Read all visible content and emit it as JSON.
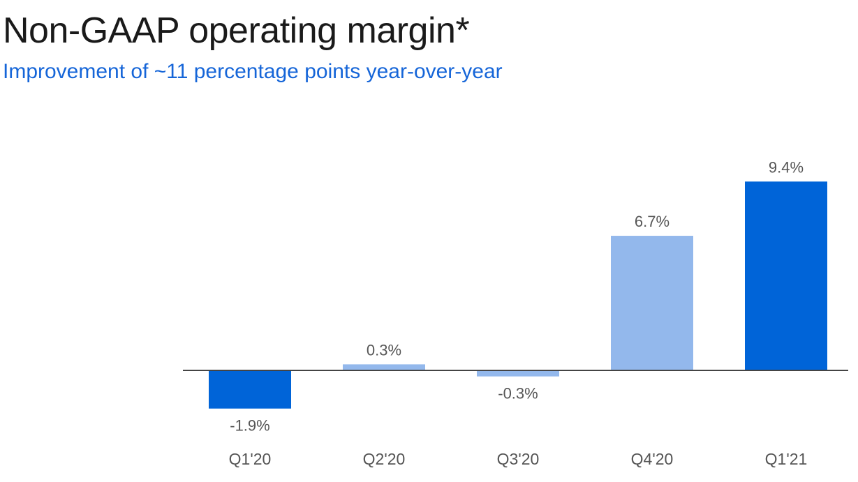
{
  "header": {
    "title": "Non-GAAP operating margin*",
    "subtitle": "Improvement of ~11 percentage points year-over-year"
  },
  "colors": {
    "dark_bar": "#0064d8",
    "light_bar": "#93b8ec",
    "axis": "#444444",
    "subtitle": "#1565d8"
  },
  "chart_data": {
    "type": "bar",
    "title": "Non-GAAP operating margin*",
    "subtitle": "Improvement of ~11 percentage points year-over-year",
    "xlabel": "",
    "ylabel": "",
    "unit": "%",
    "categories": [
      "Q1'20",
      "Q2'20",
      "Q3'20",
      "Q4'20",
      "Q1'21"
    ],
    "values": [
      -1.9,
      0.3,
      -0.3,
      6.7,
      9.4
    ],
    "value_labels": [
      "-1.9%",
      "0.3%",
      "-0.3%",
      "6.7%",
      "9.4%"
    ],
    "bar_colors": [
      "#0064d8",
      "#93b8ec",
      "#93b8ec",
      "#93b8ec",
      "#0064d8"
    ],
    "ylim": [
      -1.9,
      9.4
    ],
    "grid": false,
    "legend": "none"
  }
}
